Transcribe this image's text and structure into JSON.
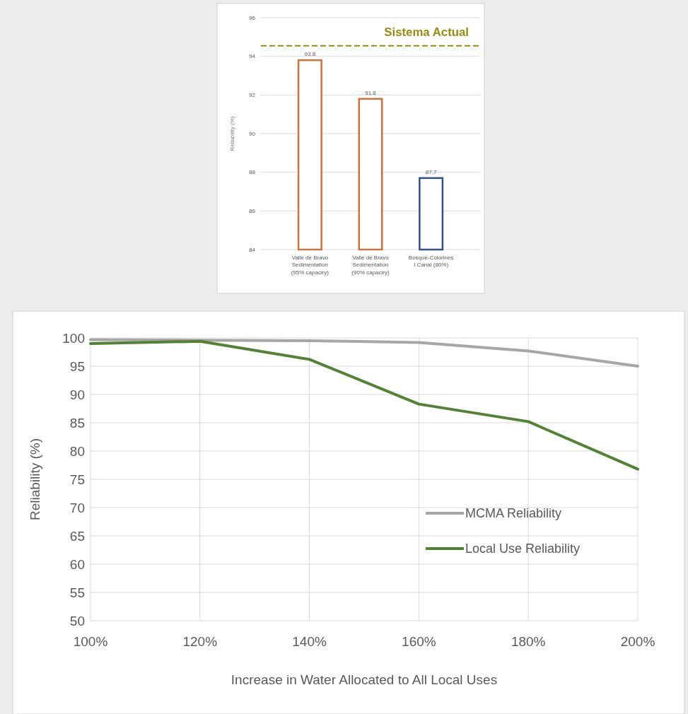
{
  "chart_data": [
    {
      "type": "bar",
      "ylabel": "Reliability (%)",
      "categories": [
        "Valle de Bravo Sedimentation (95% capaciry)",
        "Valle de Bravo Sedimentation (90% capaciry)",
        "Bosque-Colorines I Canal (80%)"
      ],
      "values": [
        93.8,
        91.8,
        87.7
      ],
      "colors": [
        "#d0703a",
        "#d0703a",
        "#2f4f8f"
      ],
      "ylim": [
        84,
        96
      ],
      "yticks": [
        84,
        86,
        88,
        90,
        92,
        94,
        96
      ],
      "grid": "y",
      "data_labels": true,
      "ref_lines": [
        {
          "axis": "y",
          "value": 94.55,
          "label": "Sistema Actual",
          "color": "#9a8a10",
          "line_style": "dashed"
        }
      ]
    },
    {
      "type": "line",
      "xlabel": "Increase in Water Allocated to All Local Uses",
      "ylabel": "Reliability (%)",
      "x": [
        100,
        120,
        140,
        160,
        180,
        200
      ],
      "series": [
        {
          "name": "MCMA Reliability",
          "color": "#a6a6a6",
          "values": [
            99.7,
            99.6,
            99.5,
            99.2,
            97.7,
            95.0
          ]
        },
        {
          "name": "Local Use Reliability",
          "color": "#548235",
          "values": [
            99.0,
            99.4,
            96.2,
            88.3,
            85.2,
            76.8
          ]
        }
      ],
      "xlim": [
        100,
        200
      ],
      "xticks": [
        {
          "value": 100,
          "label": "100%"
        },
        {
          "value": 120,
          "label": "120%"
        },
        {
          "value": 140,
          "label": "140%"
        },
        {
          "value": 160,
          "label": "160%"
        },
        {
          "value": 180,
          "label": "180%"
        },
        {
          "value": 200,
          "label": "200%"
        }
      ],
      "ylim": [
        50,
        100
      ],
      "yticks": [
        50,
        55,
        60,
        65,
        70,
        75,
        80,
        85,
        90,
        95,
        100
      ],
      "grid": true,
      "legend": "right",
      "marker": "none",
      "line_style": "solid"
    }
  ]
}
